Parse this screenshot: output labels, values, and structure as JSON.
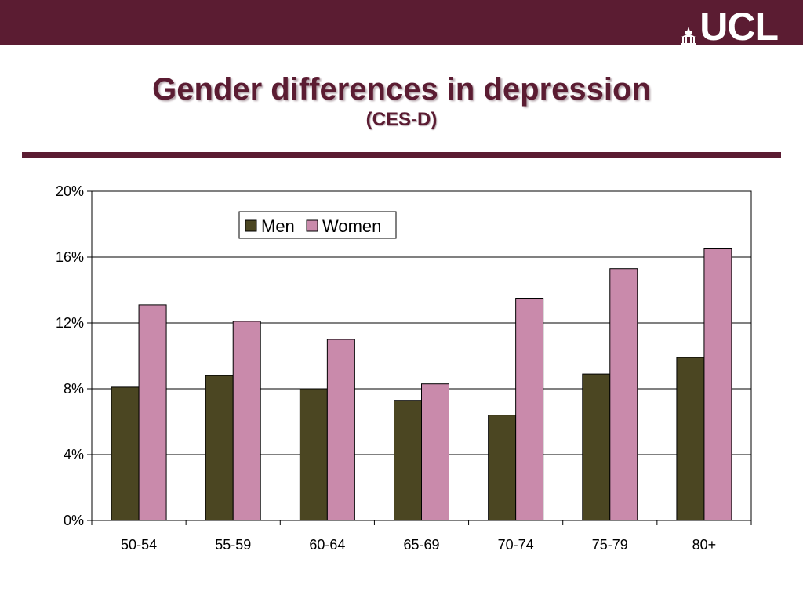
{
  "slide": {
    "title": "Gender differences in depression",
    "subtitle": "(CES-D)",
    "logo_text": "UCL"
  },
  "colors": {
    "brand": "#5b1c32",
    "men": "#4b4622",
    "women": "#c98aab"
  },
  "icons": {
    "logo": "ucl-portico-icon"
  },
  "chart_data": {
    "type": "bar",
    "title": "",
    "xlabel": "",
    "ylabel": "",
    "categories": [
      "50-54",
      "55-59",
      "60-64",
      "65-69",
      "70-74",
      "75-79",
      "80+"
    ],
    "series": [
      {
        "name": "Men",
        "values": [
          8.1,
          8.8,
          8.0,
          7.3,
          6.4,
          8.9,
          9.9
        ]
      },
      {
        "name": "Women",
        "values": [
          13.1,
          12.1,
          11.0,
          8.3,
          13.5,
          15.3,
          16.5
        ]
      }
    ],
    "ylim": [
      0,
      20
    ],
    "yticks": [
      0,
      4,
      8,
      12,
      16,
      20
    ],
    "ytick_labels": [
      "0%",
      "4%",
      "8%",
      "12%",
      "16%",
      "20%"
    ],
    "grid": true,
    "legend_position": "top-left"
  }
}
